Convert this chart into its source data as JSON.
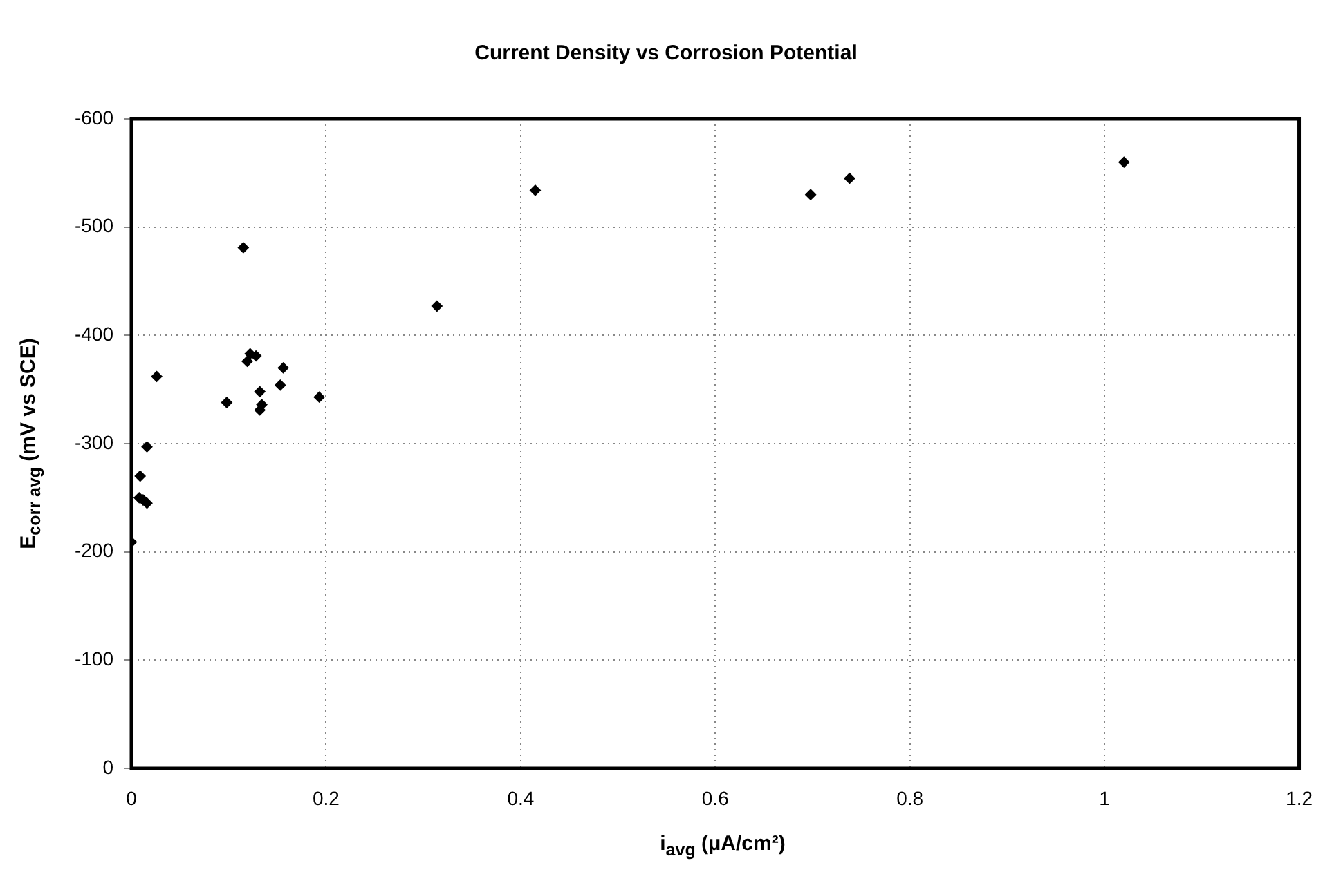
{
  "chart_data": {
    "type": "scatter",
    "title": "Current Density  vs  Corrosion Potential",
    "xlabel": "i$_{avg}$ (μA/cm²)",
    "ylabel": "E$_{corr avg}$ (mV vs SCE)",
    "series": [
      {
        "color": "#000000",
        "x": [
          0.115,
          0.122,
          0.128,
          0.119,
          0.156,
          0.026,
          0.153,
          0.132,
          0.098,
          0.134,
          0.132,
          0.193,
          0.016,
          0.009,
          0.008,
          0.012,
          0.016,
          0.0,
          0.314,
          0.415,
          0.698,
          0.738,
          1.02
        ],
        "values": [
          -481,
          -383,
          -381,
          -376,
          -370,
          -362,
          -354,
          -348,
          -338,
          -336,
          -331,
          -343,
          -297,
          -270,
          -250,
          -248,
          -245,
          -209,
          -427,
          -534,
          -530,
          -545,
          -560
        ]
      }
    ],
    "xlim": [
      0,
      1.2
    ],
    "xticks": [
      0,
      0.2,
      0.4,
      0.6,
      0.8,
      1,
      1.2
    ],
    "ylim": [
      0,
      -600
    ],
    "yticks": [
      0,
      -100,
      -200,
      -300,
      -400,
      -500,
      -600
    ],
    "grid": true,
    "marker": "diamond",
    "legend": false
  }
}
